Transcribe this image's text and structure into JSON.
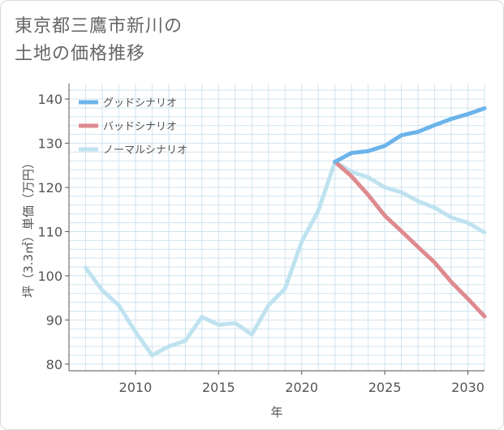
{
  "title_line1": "東京都三鷹市新川の",
  "title_line2": "土地の価格推移",
  "colors": {
    "good": "#6cb4ea",
    "bad": "#de8a8f",
    "normal": "#bfe2ef",
    "grid": "#cfe3ef",
    "axis": "#555555"
  },
  "chart_data": {
    "type": "line",
    "xlabel": "年",
    "ylabel": "坪（3.3㎡）単価（万円）",
    "xlim": [
      2006,
      2031
    ],
    "ylim": [
      78.5,
      143.5
    ],
    "x_ticks": [
      2010,
      2015,
      2020,
      2025,
      2030
    ],
    "y_ticks": [
      80,
      90,
      100,
      110,
      120,
      130,
      140
    ],
    "grid": true,
    "legend_position": "top-left",
    "series": [
      {
        "name": "グッドシナリオ",
        "color_key": "good",
        "x": [
          2022,
          2023,
          2024,
          2025,
          2026,
          2027,
          2028,
          2029,
          2030,
          2031
        ],
        "y": [
          125.8,
          127.8,
          128.2,
          129.4,
          131.8,
          132.6,
          134.1,
          135.5,
          136.6,
          137.9
        ]
      },
      {
        "name": "バッドシナリオ",
        "color_key": "bad",
        "x": [
          2022,
          2023,
          2024,
          2025,
          2026,
          2027,
          2028,
          2029,
          2030,
          2031
        ],
        "y": [
          125.8,
          122.5,
          118.3,
          113.6,
          110.1,
          106.5,
          103.0,
          98.6,
          94.8,
          90.8
        ]
      },
      {
        "name": "ノーマルシナリオ",
        "color_key": "normal",
        "x": [
          2007,
          2008,
          2009,
          2010,
          2011,
          2012,
          2013,
          2014,
          2015,
          2016,
          2017,
          2018,
          2019,
          2020,
          2021,
          2022,
          2023,
          2024,
          2025,
          2026,
          2027,
          2028,
          2029,
          2030,
          2031
        ],
        "y": [
          101.8,
          96.7,
          93.3,
          87.3,
          82.0,
          84.0,
          85.3,
          90.7,
          88.9,
          89.3,
          86.7,
          93.3,
          97.1,
          107.7,
          114.7,
          125.8,
          123.5,
          122.3,
          120.0,
          118.9,
          116.9,
          115.4,
          113.2,
          112.0,
          109.8
        ]
      }
    ]
  }
}
